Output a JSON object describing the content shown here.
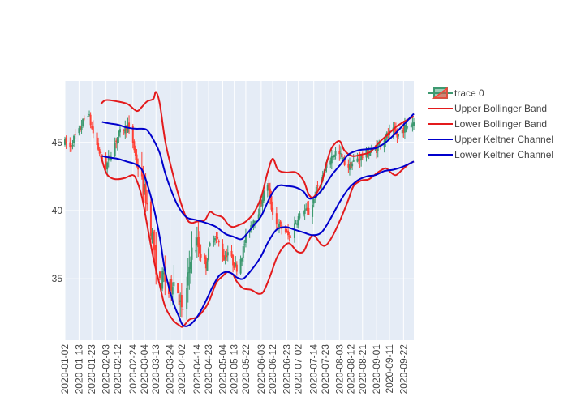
{
  "chart_data": {
    "type": "candlestick",
    "title": "",
    "xlabel": "",
    "ylabel": "",
    "ylim": [
      30.5,
      49.5
    ],
    "xlim": [
      "2020-01-02",
      "2020-09-30"
    ],
    "grid": true,
    "legend_position": "right",
    "x_ticks": [
      "2020-01-02",
      "2020-01-13",
      "2020-01-23",
      "2020-02-03",
      "2020-02-12",
      "2020-02-24",
      "2020-03-04",
      "2020-03-13",
      "2020-03-24",
      "2020-04-02",
      "2020-04-14",
      "2020-04-23",
      "2020-05-04",
      "2020-05-13",
      "2020-05-22",
      "2020-06-03",
      "2020-06-12",
      "2020-06-23",
      "2020-07-02",
      "2020-07-14",
      "2020-07-23",
      "2020-08-03",
      "2020-08-12",
      "2020-08-21",
      "2020-09-01",
      "2020-09-11",
      "2020-09-22"
    ],
    "y_ticks": [
      35,
      40,
      45
    ],
    "colors": {
      "plot_bg": "#e5ecf6",
      "increasing": "#3d9970",
      "decreasing": "#ff4136",
      "bollinger": "#e31a1c",
      "keltner": "#0000cc"
    },
    "price_anchors": [
      [
        "2020-01-02",
        45.0
      ],
      [
        "2020-01-06",
        44.6
      ],
      [
        "2020-01-09",
        45.3
      ],
      [
        "2020-01-13",
        45.8
      ],
      [
        "2020-01-16",
        46.5
      ],
      [
        "2020-01-20",
        47.2
      ],
      [
        "2020-01-23",
        46.0
      ],
      [
        "2020-01-27",
        44.8
      ],
      [
        "2020-01-30",
        44.0
      ],
      [
        "2020-02-03",
        43.2
      ],
      [
        "2020-02-06",
        44.0
      ],
      [
        "2020-02-10",
        45.0
      ],
      [
        "2020-02-13",
        45.6
      ],
      [
        "2020-02-17",
        46.0
      ],
      [
        "2020-02-20",
        46.2
      ],
      [
        "2020-02-24",
        45.0
      ],
      [
        "2020-02-27",
        43.5
      ],
      [
        "2020-03-02",
        42.0
      ],
      [
        "2020-03-05",
        41.0
      ],
      [
        "2020-03-09",
        38.8
      ],
      [
        "2020-03-12",
        36.5
      ],
      [
        "2020-03-16",
        34.5
      ],
      [
        "2020-03-19",
        35.2
      ],
      [
        "2020-03-23",
        34.0
      ],
      [
        "2020-03-26",
        35.0
      ],
      [
        "2020-03-30",
        34.2
      ],
      [
        "2020-04-02",
        32.5
      ],
      [
        "2020-04-06",
        34.0
      ],
      [
        "2020-04-09",
        36.8
      ],
      [
        "2020-04-14",
        37.6
      ],
      [
        "2020-04-17",
        37.0
      ],
      [
        "2020-04-21",
        36.0
      ],
      [
        "2020-04-24",
        37.5
      ],
      [
        "2020-04-28",
        38.2
      ],
      [
        "2020-05-01",
        37.6
      ],
      [
        "2020-05-05",
        36.5
      ],
      [
        "2020-05-08",
        37.0
      ],
      [
        "2020-05-12",
        36.2
      ],
      [
        "2020-05-15",
        35.8
      ],
      [
        "2020-05-19",
        36.8
      ],
      [
        "2020-05-22",
        38.0
      ],
      [
        "2020-05-27",
        39.2
      ],
      [
        "2020-06-01",
        40.0
      ],
      [
        "2020-06-04",
        41.0
      ],
      [
        "2020-06-08",
        42.0
      ],
      [
        "2020-06-11",
        40.2
      ],
      [
        "2020-06-15",
        39.0
      ],
      [
        "2020-06-18",
        38.8
      ],
      [
        "2020-06-22",
        38.5
      ],
      [
        "2020-06-25",
        38.0
      ],
      [
        "2020-06-29",
        39.0
      ],
      [
        "2020-07-02",
        39.5
      ],
      [
        "2020-07-07",
        40.0
      ],
      [
        "2020-07-10",
        39.8
      ],
      [
        "2020-07-14",
        40.8
      ],
      [
        "2020-07-17",
        41.8
      ],
      [
        "2020-07-21",
        42.5
      ],
      [
        "2020-07-24",
        43.2
      ],
      [
        "2020-07-28",
        44.0
      ],
      [
        "2020-07-31",
        44.3
      ],
      [
        "2020-08-04",
        44.0
      ],
      [
        "2020-08-07",
        43.5
      ],
      [
        "2020-08-11",
        43.2
      ],
      [
        "2020-08-14",
        43.6
      ],
      [
        "2020-08-18",
        43.8
      ],
      [
        "2020-08-21",
        44.0
      ],
      [
        "2020-08-25",
        44.2
      ],
      [
        "2020-08-28",
        44.4
      ],
      [
        "2020-09-01",
        44.5
      ],
      [
        "2020-09-04",
        45.0
      ],
      [
        "2020-09-09",
        45.5
      ],
      [
        "2020-09-14",
        45.8
      ],
      [
        "2020-09-17",
        45.4
      ],
      [
        "2020-09-22",
        46.0
      ],
      [
        "2020-09-25",
        46.2
      ],
      [
        "2020-09-30",
        46.5
      ]
    ],
    "series": [
      {
        "name": "trace 0",
        "kind": "candlestick"
      },
      {
        "name": "Upper Bollinger Band",
        "kind": "line",
        "color": "#e31a1c",
        "points": [
          [
            "2020-01-30",
            47.8
          ],
          [
            "2020-02-03",
            48.1
          ],
          [
            "2020-02-12",
            48.0
          ],
          [
            "2020-02-20",
            47.8
          ],
          [
            "2020-02-27",
            47.3
          ],
          [
            "2020-03-02",
            47.6
          ],
          [
            "2020-03-06",
            48.0
          ],
          [
            "2020-03-11",
            48.2
          ],
          [
            "2020-03-13",
            48.7
          ],
          [
            "2020-03-16",
            47.8
          ],
          [
            "2020-03-20",
            45.2
          ],
          [
            "2020-03-24",
            43.5
          ],
          [
            "2020-03-31",
            41.0
          ],
          [
            "2020-04-06",
            39.4
          ],
          [
            "2020-04-10",
            39.1
          ],
          [
            "2020-04-14",
            39.2
          ],
          [
            "2020-04-20",
            39.3
          ],
          [
            "2020-04-24",
            39.9
          ],
          [
            "2020-04-28",
            39.7
          ],
          [
            "2020-05-04",
            39.5
          ],
          [
            "2020-05-08",
            39.0
          ],
          [
            "2020-05-12",
            38.8
          ],
          [
            "2020-05-18",
            39.0
          ],
          [
            "2020-05-22",
            39.2
          ],
          [
            "2020-05-28",
            39.8
          ],
          [
            "2020-06-03",
            41.0
          ],
          [
            "2020-06-08",
            42.8
          ],
          [
            "2020-06-12",
            43.8
          ],
          [
            "2020-06-16",
            43.0
          ],
          [
            "2020-06-22",
            42.8
          ],
          [
            "2020-06-30",
            42.8
          ],
          [
            "2020-07-06",
            42.2
          ],
          [
            "2020-07-10",
            41.2
          ],
          [
            "2020-07-14",
            41.0
          ],
          [
            "2020-07-20",
            42.0
          ],
          [
            "2020-07-24",
            43.5
          ],
          [
            "2020-07-28",
            44.6
          ],
          [
            "2020-08-03",
            45.1
          ],
          [
            "2020-08-07",
            44.4
          ],
          [
            "2020-08-13",
            44.0
          ],
          [
            "2020-08-20",
            44.1
          ],
          [
            "2020-08-27",
            44.3
          ],
          [
            "2020-09-03",
            45.0
          ],
          [
            "2020-09-10",
            45.6
          ],
          [
            "2020-09-17",
            46.2
          ],
          [
            "2020-09-24",
            46.6
          ],
          [
            "2020-09-30",
            46.9
          ]
        ]
      },
      {
        "name": "Lower Bollinger Band",
        "kind": "line",
        "color": "#e31a1c",
        "points": [
          [
            "2020-01-30",
            44.0
          ],
          [
            "2020-02-03",
            42.8
          ],
          [
            "2020-02-07",
            42.4
          ],
          [
            "2020-02-12",
            42.3
          ],
          [
            "2020-02-18",
            42.4
          ],
          [
            "2020-02-24",
            42.6
          ],
          [
            "2020-02-27",
            42.2
          ],
          [
            "2020-03-02",
            41.0
          ],
          [
            "2020-03-06",
            39.0
          ],
          [
            "2020-03-11",
            36.5
          ],
          [
            "2020-03-16",
            34.5
          ],
          [
            "2020-03-20",
            33.0
          ],
          [
            "2020-03-26",
            32.0
          ],
          [
            "2020-03-31",
            31.6
          ],
          [
            "2020-04-03",
            31.5
          ],
          [
            "2020-04-08",
            32.0
          ],
          [
            "2020-04-14",
            32.2
          ],
          [
            "2020-04-20",
            32.8
          ],
          [
            "2020-04-24",
            33.5
          ],
          [
            "2020-04-29",
            34.7
          ],
          [
            "2020-05-04",
            35.2
          ],
          [
            "2020-05-08",
            35.5
          ],
          [
            "2020-05-12",
            35.3
          ],
          [
            "2020-05-15",
            34.8
          ],
          [
            "2020-05-20",
            34.3
          ],
          [
            "2020-05-26",
            34.2
          ],
          [
            "2020-06-01",
            33.9
          ],
          [
            "2020-06-05",
            34.1
          ],
          [
            "2020-06-10",
            35.2
          ],
          [
            "2020-06-15",
            36.5
          ],
          [
            "2020-06-20",
            37.3
          ],
          [
            "2020-06-25",
            37.6
          ],
          [
            "2020-07-01",
            37.0
          ],
          [
            "2020-07-06",
            37.0
          ],
          [
            "2020-07-10",
            37.8
          ],
          [
            "2020-07-14",
            38.2
          ],
          [
            "2020-07-20",
            37.5
          ],
          [
            "2020-07-24",
            37.5
          ],
          [
            "2020-07-29",
            38.2
          ],
          [
            "2020-08-04",
            39.4
          ],
          [
            "2020-08-10",
            40.8
          ],
          [
            "2020-08-14",
            41.8
          ],
          [
            "2020-08-20",
            42.2
          ],
          [
            "2020-08-26",
            42.3
          ],
          [
            "2020-09-02",
            42.8
          ],
          [
            "2020-09-08",
            43.1
          ],
          [
            "2020-09-12",
            42.8
          ],
          [
            "2020-09-16",
            42.6
          ],
          [
            "2020-09-21",
            43.0
          ],
          [
            "2020-09-26",
            43.4
          ],
          [
            "2020-09-30",
            43.6
          ]
        ]
      },
      {
        "name": "Upper Keltner Channel",
        "kind": "line",
        "color": "#0000cc",
        "points": [
          [
            "2020-01-31",
            46.5
          ],
          [
            "2020-02-05",
            46.4
          ],
          [
            "2020-02-12",
            46.3
          ],
          [
            "2020-02-19",
            46.1
          ],
          [
            "2020-02-26",
            46.0
          ],
          [
            "2020-03-02",
            46.0
          ],
          [
            "2020-03-06",
            45.9
          ],
          [
            "2020-03-11",
            45.2
          ],
          [
            "2020-03-16",
            44.2
          ],
          [
            "2020-03-20",
            42.8
          ],
          [
            "2020-03-26",
            41.2
          ],
          [
            "2020-03-31",
            40.2
          ],
          [
            "2020-04-06",
            39.5
          ],
          [
            "2020-04-14",
            39.3
          ],
          [
            "2020-04-21",
            39.1
          ],
          [
            "2020-04-29",
            38.8
          ],
          [
            "2020-05-06",
            38.3
          ],
          [
            "2020-05-12",
            38.1
          ],
          [
            "2020-05-18",
            37.9
          ],
          [
            "2020-05-22",
            38.2
          ],
          [
            "2020-05-28",
            38.9
          ],
          [
            "2020-06-03",
            39.6
          ],
          [
            "2020-06-10",
            41.0
          ],
          [
            "2020-06-16",
            41.8
          ],
          [
            "2020-06-23",
            41.8
          ],
          [
            "2020-06-30",
            41.7
          ],
          [
            "2020-07-06",
            41.4
          ],
          [
            "2020-07-10",
            40.9
          ],
          [
            "2020-07-15",
            41.0
          ],
          [
            "2020-07-21",
            41.6
          ],
          [
            "2020-07-28",
            42.6
          ],
          [
            "2020-08-04",
            43.4
          ],
          [
            "2020-08-10",
            44.1
          ],
          [
            "2020-08-17",
            44.4
          ],
          [
            "2020-08-24",
            44.5
          ],
          [
            "2020-09-01",
            44.6
          ],
          [
            "2020-09-08",
            45.0
          ],
          [
            "2020-09-15",
            45.6
          ],
          [
            "2020-09-22",
            46.3
          ],
          [
            "2020-09-30",
            47.1
          ]
        ]
      },
      {
        "name": "Lower Keltner Channel",
        "kind": "line",
        "color": "#0000cc",
        "points": [
          [
            "2020-01-31",
            44.0
          ],
          [
            "2020-02-05",
            43.9
          ],
          [
            "2020-02-12",
            43.8
          ],
          [
            "2020-02-19",
            43.6
          ],
          [
            "2020-02-26",
            43.4
          ],
          [
            "2020-03-02",
            43.0
          ],
          [
            "2020-03-06",
            42.0
          ],
          [
            "2020-03-11",
            40.3
          ],
          [
            "2020-03-16",
            38.0
          ],
          [
            "2020-03-20",
            35.6
          ],
          [
            "2020-03-26",
            33.4
          ],
          [
            "2020-03-31",
            32.2
          ],
          [
            "2020-04-03",
            31.6
          ],
          [
            "2020-04-08",
            31.6
          ],
          [
            "2020-04-14",
            32.2
          ],
          [
            "2020-04-20",
            33.2
          ],
          [
            "2020-04-26",
            34.4
          ],
          [
            "2020-05-01",
            35.2
          ],
          [
            "2020-05-06",
            35.5
          ],
          [
            "2020-05-11",
            35.4
          ],
          [
            "2020-05-15",
            35.1
          ],
          [
            "2020-05-20",
            35.0
          ],
          [
            "2020-05-26",
            35.6
          ],
          [
            "2020-06-02",
            36.5
          ],
          [
            "2020-06-09",
            37.8
          ],
          [
            "2020-06-15",
            38.6
          ],
          [
            "2020-06-22",
            38.8
          ],
          [
            "2020-06-29",
            38.6
          ],
          [
            "2020-07-06",
            38.4
          ],
          [
            "2020-07-13",
            38.2
          ],
          [
            "2020-07-20",
            38.4
          ],
          [
            "2020-07-27",
            39.4
          ],
          [
            "2020-08-03",
            40.6
          ],
          [
            "2020-08-10",
            41.6
          ],
          [
            "2020-08-17",
            42.2
          ],
          [
            "2020-08-24",
            42.5
          ],
          [
            "2020-08-31",
            42.6
          ],
          [
            "2020-09-07",
            42.9
          ],
          [
            "2020-09-14",
            43.0
          ],
          [
            "2020-09-21",
            43.2
          ],
          [
            "2020-09-30",
            43.6
          ]
        ]
      }
    ]
  }
}
